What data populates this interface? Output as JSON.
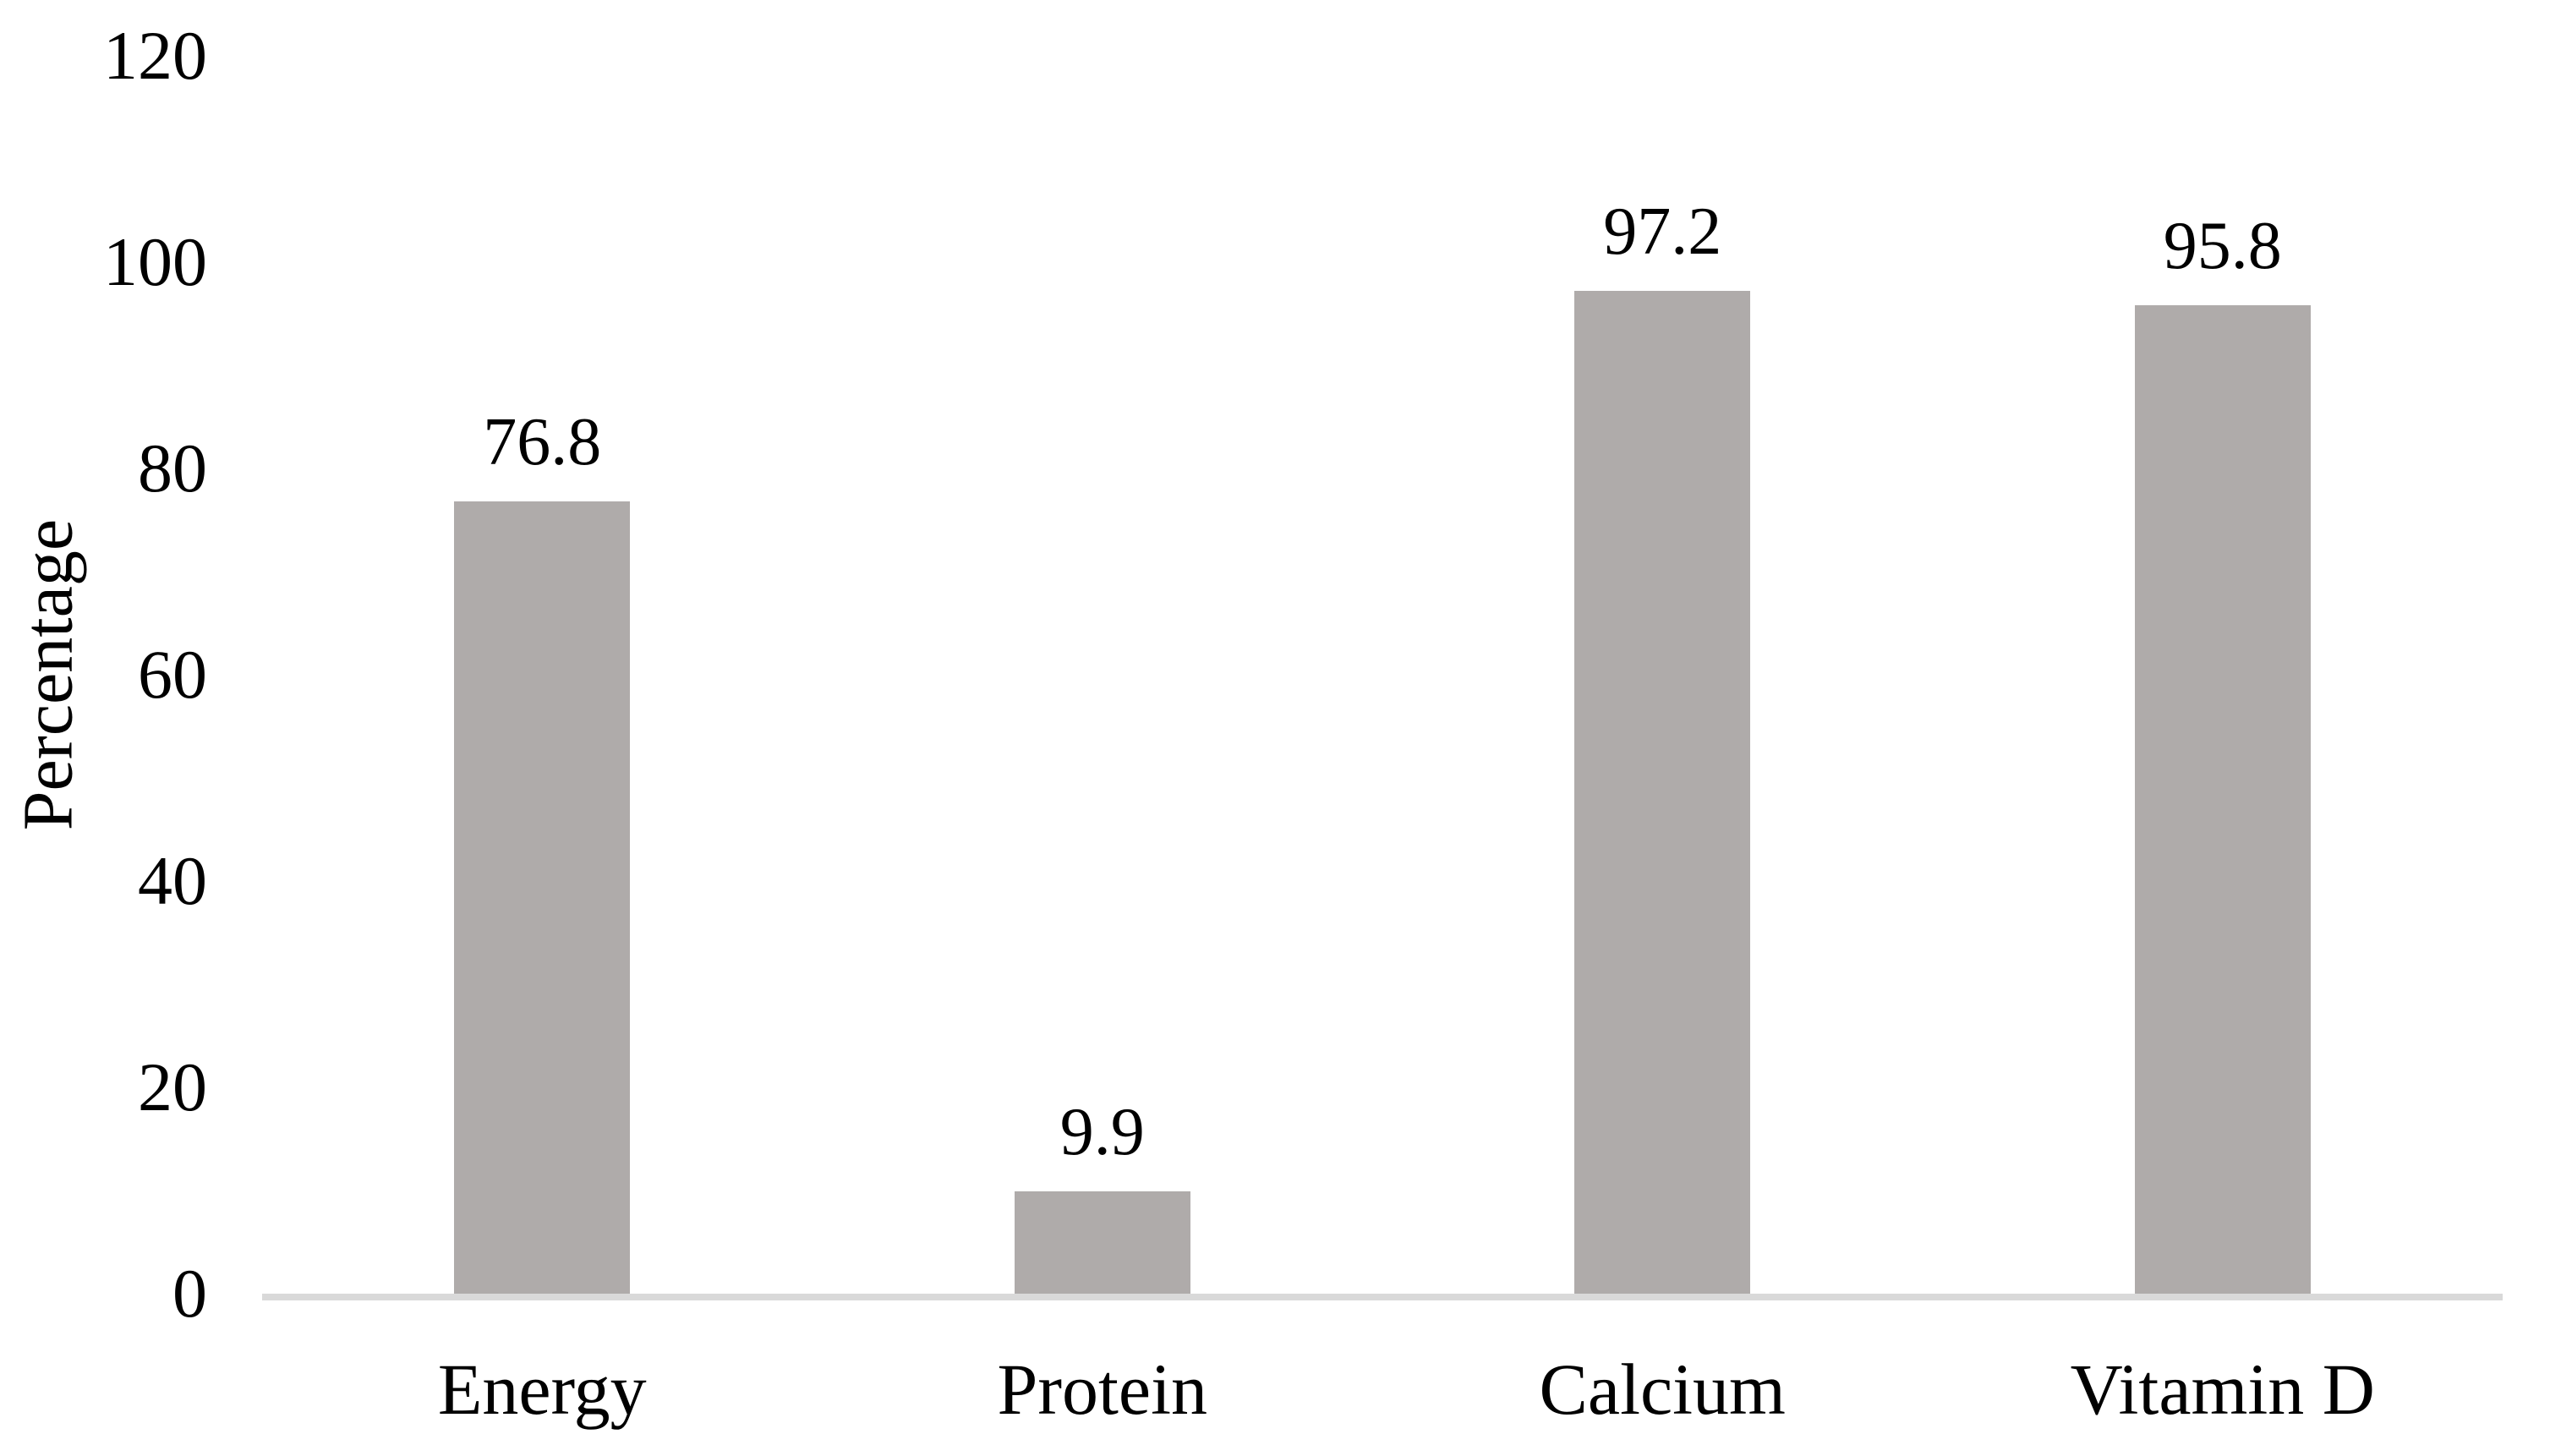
{
  "page": {
    "background": "#ffffff"
  },
  "chart_data": {
    "type": "bar",
    "title": "",
    "categories": [
      "Energy",
      "Protein",
      "Calcium",
      "Vitamin D"
    ],
    "values": [
      76.8,
      9.9,
      97.2,
      95.8
    ],
    "data_labels": [
      "76.8",
      "9.9",
      "97.2",
      "95.8"
    ],
    "ylabel": "Percentage",
    "xlabel": "",
    "ylim": [
      0,
      120
    ],
    "yticks": [
      0,
      20,
      40,
      60,
      80,
      100,
      120
    ],
    "grid": false,
    "legend_position": "none",
    "bar_color": "#afabaa",
    "axis_line_color": "#d9d9d9",
    "text_color": "#000000",
    "background": "#ffffff"
  }
}
